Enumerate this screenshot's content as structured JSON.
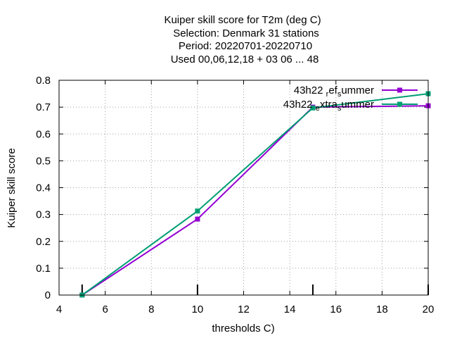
{
  "chart_data": {
    "type": "line",
    "title_lines": [
      "Kuiper skill score  for T2m (deg C)",
      "Selection: Denmark     31 stations",
      "Period: 20220701-20220710",
      "Used  00,06,12,18  + 03 06 ... 48"
    ],
    "xlabel": "thresholds C)",
    "ylabel": "Kuiper skill score",
    "xlim": [
      4,
      20
    ],
    "ylim": [
      0,
      0.8
    ],
    "xticks": [
      4,
      6,
      8,
      10,
      12,
      14,
      16,
      18,
      20
    ],
    "yticks": [
      0,
      0.1,
      0.2,
      0.3,
      0.4,
      0.5,
      0.6,
      0.7,
      0.8
    ],
    "ytick_labels": [
      "0",
      "0.1",
      "0.2",
      "0.3",
      "0.4",
      "0.5",
      "0.6",
      "0.7",
      "0.8"
    ],
    "grid": true,
    "legend_position": "top-right",
    "threshold_markers": [
      5,
      10,
      15,
      20
    ],
    "series": [
      {
        "name": "43h22_ref_summer",
        "legend_parts": [
          "43h22",
          "r",
          "ef",
          "s",
          "ummer"
        ],
        "color": "#9400d3",
        "x": [
          5,
          10,
          15,
          20
        ],
        "y": [
          0.0,
          0.283,
          0.7,
          0.705
        ]
      },
      {
        "name": "43h22_extra_summer",
        "legend_parts": [
          "43h22",
          "e",
          "xtra",
          "s",
          "ummer"
        ],
        "color": "#009e73",
        "x": [
          5,
          10,
          15,
          20
        ],
        "y": [
          0.0,
          0.313,
          0.697,
          0.75
        ]
      }
    ]
  }
}
